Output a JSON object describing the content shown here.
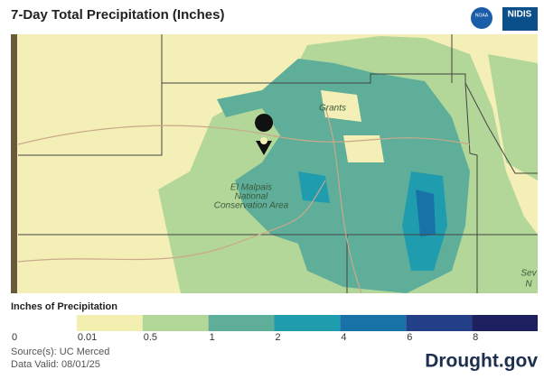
{
  "header": {
    "title": "7-Day Total Precipitation (Inches)",
    "logo_left": "NOAA",
    "logo_right": "NIDIS"
  },
  "map": {
    "labels": [
      "Grants",
      "El Malpais",
      "National",
      "Conservation Area",
      "Sev",
      "N"
    ]
  },
  "legend": {
    "title": "Inches of Precipitation",
    "ticks": [
      0,
      0.01,
      0.5,
      1,
      2,
      4,
      6,
      8
    ],
    "colors": [
      "#ffffff",
      "#f3efb0",
      "#b3d699",
      "#5fae9a",
      "#1f9cae",
      "#1872a8",
      "#233f87",
      "#1d1f5e"
    ]
  },
  "footer": {
    "source": "Source(s): UC Merced",
    "date": "Data Valid: 08/01/25",
    "brand": "Drought.gov"
  }
}
